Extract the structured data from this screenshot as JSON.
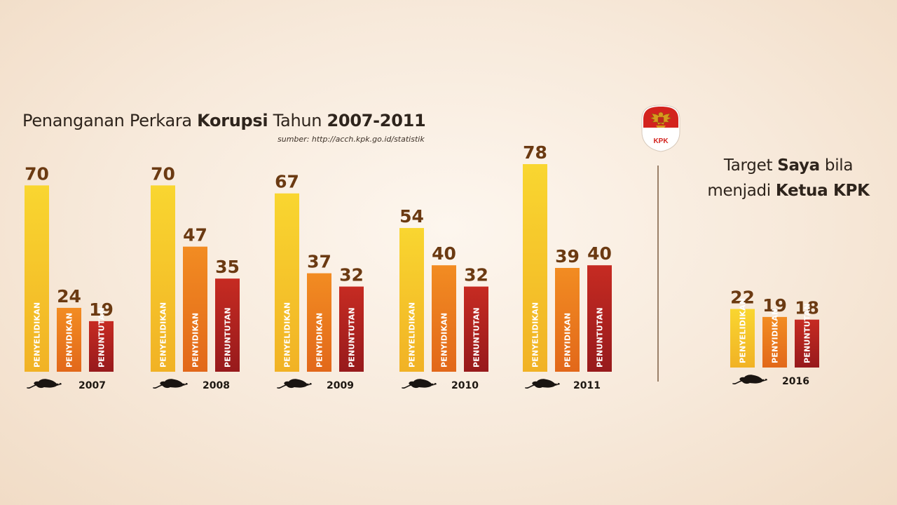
{
  "header": {
    "title_part1": "Penanganan Perkara ",
    "title_bold1": "Korupsi",
    "title_part2": " Tahun ",
    "title_bold2": "2007-2011",
    "source": "sumber: http://acch.kpk.go.id/statistik"
  },
  "logo": {
    "text": "KPK"
  },
  "target": {
    "line1_part1": "Target ",
    "line1_bold": "Saya",
    "line1_part2": " bila",
    "line2_part1": "menjadi ",
    "line2_bold": "Ketua KPK"
  },
  "colors": {
    "penyelidikan_top": "#f9d630",
    "penyelidikan_bottom": "#f1b225",
    "penyidikan_top": "#f28c22",
    "penyidikan_bottom": "#e2681a",
    "penuntutan_top": "#c62b22",
    "penuntutan_bottom": "#971a1c",
    "value_text": "#6b3a12"
  },
  "chart_data": {
    "type": "bar",
    "categories": [
      "2007",
      "2008",
      "2009",
      "2010",
      "2011",
      "2016"
    ],
    "series": [
      {
        "name": "PENYELIDIKAN",
        "values": [
          70,
          70,
          67,
          54,
          78,
          22
        ]
      },
      {
        "name": "PENYIDIKAN",
        "values": [
          24,
          47,
          37,
          40,
          39,
          19
        ]
      },
      {
        "name": "PENUNTUTAN",
        "values": [
          19,
          35,
          32,
          32,
          40,
          18
        ]
      }
    ],
    "ylim": [
      0,
      78
    ],
    "grid": false,
    "legend": "none (labels printed vertically inside bars)"
  }
}
